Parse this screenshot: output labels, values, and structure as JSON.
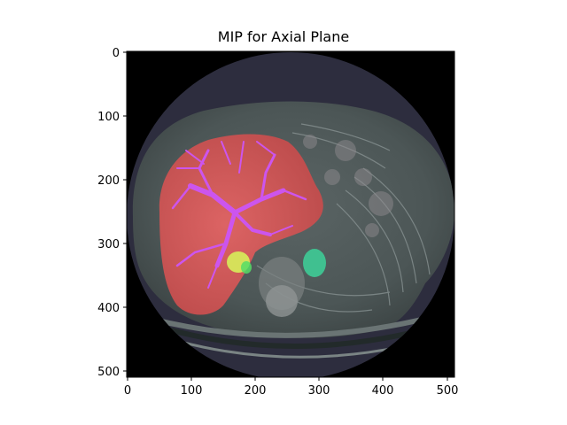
{
  "figure": {
    "title": "MIP for Axial Plane",
    "x_ticks": [
      "0",
      "100",
      "200",
      "300",
      "400",
      "500"
    ],
    "y_ticks": [
      "0",
      "100",
      "200",
      "300",
      "400",
      "500"
    ],
    "image_extent": [
      0,
      512
    ],
    "colors": {
      "background": "#000000",
      "body_tissue": "#505a5a",
      "fov_circle": "#2b2b3c",
      "liver": "#dd5a5a",
      "hepatic_vessels": "#cc55ee",
      "gallbladder": "#d6e05a",
      "kidney_or_vessel": "#40c090",
      "green_patch": "#55dd66"
    },
    "segments": [
      "liver",
      "hepatic-vessels",
      "yellow-structure",
      "teal-structure"
    ]
  }
}
